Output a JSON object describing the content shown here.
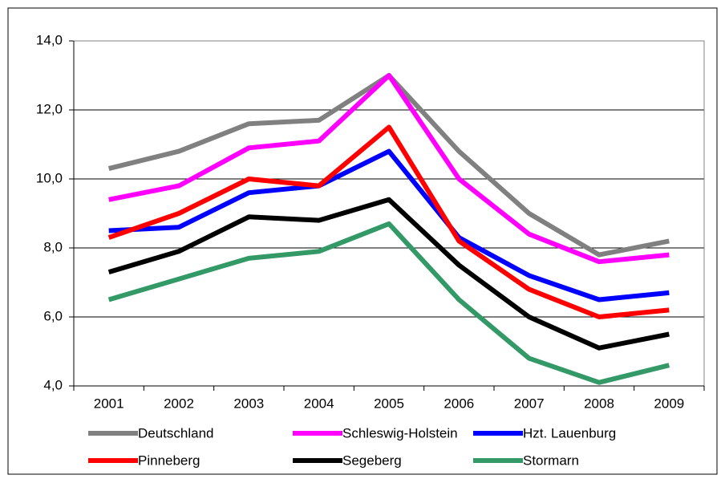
{
  "chart_data": {
    "type": "line",
    "categories": [
      "2001",
      "2002",
      "2003",
      "2004",
      "2005",
      "2006",
      "2007",
      "2008",
      "2009"
    ],
    "series": [
      {
        "name": "Deutschland",
        "color": "#808080",
        "values": [
          10.3,
          10.8,
          11.6,
          11.7,
          13.0,
          10.8,
          9.0,
          7.8,
          8.2
        ]
      },
      {
        "name": "Schleswig-Holstein",
        "color": "#ff00ff",
        "values": [
          9.4,
          9.8,
          10.9,
          11.1,
          13.0,
          10.0,
          8.4,
          7.6,
          7.8
        ]
      },
      {
        "name": "Hzt. Lauenburg",
        "color": "#0000ff",
        "values": [
          8.5,
          8.6,
          9.6,
          9.8,
          10.8,
          8.3,
          7.2,
          6.5,
          6.7
        ]
      },
      {
        "name": "Pinneberg",
        "color": "#ff0000",
        "values": [
          8.3,
          9.0,
          10.0,
          9.8,
          11.5,
          8.2,
          6.8,
          6.0,
          6.2
        ]
      },
      {
        "name": "Segeberg",
        "color": "#000000",
        "values": [
          7.3,
          7.9,
          8.9,
          8.8,
          9.4,
          7.5,
          6.0,
          5.1,
          5.5
        ]
      },
      {
        "name": "Stormarn",
        "color": "#339966",
        "values": [
          6.5,
          7.1,
          7.7,
          7.9,
          8.7,
          6.5,
          4.8,
          4.1,
          4.6
        ]
      }
    ],
    "ylim": [
      4,
      14
    ],
    "yticks": [
      {
        "value": 4,
        "label": "4,0"
      },
      {
        "value": 6,
        "label": "6,0"
      },
      {
        "value": 8,
        "label": "8,0"
      },
      {
        "value": 10,
        "label": "10,0"
      },
      {
        "value": 12,
        "label": "12,0"
      },
      {
        "value": 14,
        "label": "14,0"
      }
    ],
    "grid": true
  }
}
